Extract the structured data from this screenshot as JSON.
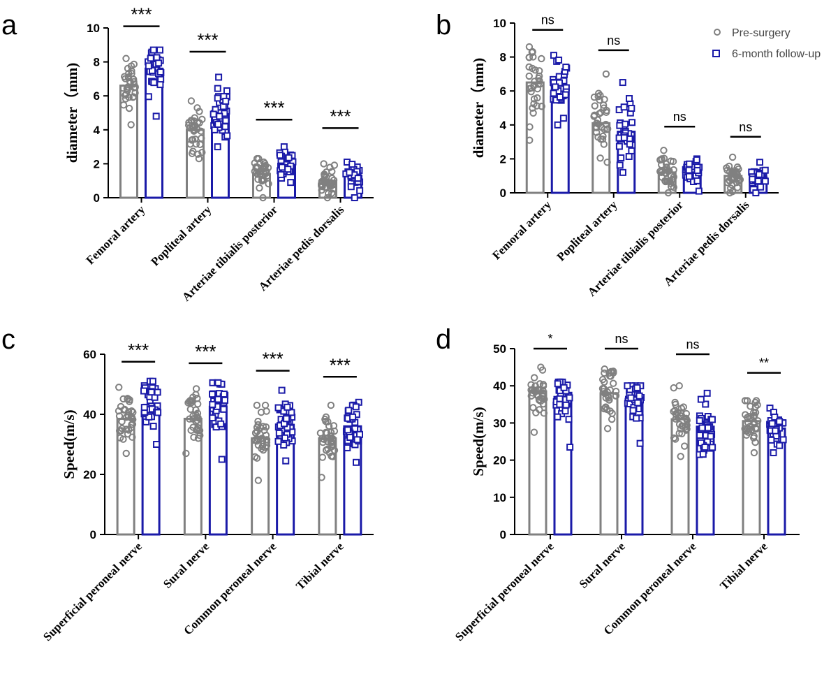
{
  "legend": {
    "pre_label": "Pre-surgery",
    "post_label": "6-month  follow-up"
  },
  "colors": {
    "pre": "#808080",
    "post": "#1a1aa8"
  },
  "chart_data": [
    {
      "panel": "a",
      "type": "bar",
      "title": "",
      "ylabel": "diameter（mm)",
      "xlabel": "",
      "ylim": [
        0,
        10
      ],
      "yticks": [
        0,
        2,
        4,
        6,
        8,
        10
      ],
      "categories": [
        "Femoral artery",
        "Popliteal artery",
        "Arteriae tibialis posterior",
        "Arteriae pedis dorsalis"
      ],
      "series": [
        {
          "name": "Pre-surgery",
          "values": [
            6.6,
            4.0,
            1.4,
            1.0
          ],
          "range": [
            [
              4.3,
              8.2
            ],
            [
              2.3,
              5.7
            ],
            [
              0.0,
              2.3
            ],
            [
              0.0,
              2.0
            ]
          ]
        },
        {
          "name": "6-month  follow-up",
          "values": [
            7.6,
            5.1,
            2.0,
            1.3
          ],
          "range": [
            [
              4.8,
              8.7
            ],
            [
              3.0,
              7.1
            ],
            [
              0.9,
              3.0
            ],
            [
              0.0,
              2.1
            ]
          ]
        }
      ],
      "significance": [
        "***",
        "***",
        "***",
        "***"
      ],
      "sig_y": [
        10.1,
        8.6,
        4.6,
        4.1
      ]
    },
    {
      "panel": "b",
      "type": "bar",
      "title": "",
      "ylabel": "diameter（mm)",
      "xlabel": "",
      "ylim": [
        0,
        10
      ],
      "yticks": [
        0,
        2,
        4,
        6,
        8,
        10
      ],
      "categories": [
        "Femoral artery",
        "Popliteal artery",
        "Arteriae tibialis posterior",
        "Arteriae pedis dorsalis"
      ],
      "series": [
        {
          "name": "Pre-surgery",
          "values": [
            6.5,
            4.1,
            1.2,
            1.0
          ],
          "range": [
            [
              3.1,
              8.6
            ],
            [
              1.8,
              7.0
            ],
            [
              0.0,
              2.5
            ],
            [
              0.0,
              2.1
            ]
          ]
        },
        {
          "name": "6-month  follow-up",
          "values": [
            6.3,
            3.6,
            1.3,
            0.9
          ],
          "range": [
            [
              4.0,
              8.1
            ],
            [
              1.2,
              6.5
            ],
            [
              0.1,
              2.0
            ],
            [
              0.0,
              1.8
            ]
          ]
        }
      ],
      "significance": [
        "ns",
        "ns",
        "ns",
        "ns"
      ],
      "sig_y": [
        9.6,
        8.4,
        3.9,
        3.3
      ]
    },
    {
      "panel": "c",
      "type": "bar",
      "title": "",
      "ylabel": "Speed(m/s)",
      "xlabel": "",
      "ylim": [
        0,
        60
      ],
      "yticks": [
        0,
        20,
        40,
        60
      ],
      "categories": [
        "Superficial peroneal nerve",
        "Sural nerve",
        "Common peroneal nerve",
        "Tibial nerve"
      ],
      "series": [
        {
          "name": "Pre-surgery",
          "values": [
            38.5,
            38.5,
            32.0,
            32.0
          ],
          "range": [
            [
              27.0,
              49.0
            ],
            [
              27.0,
              48.5
            ],
            [
              18.0,
              43.0
            ],
            [
              19.0,
              43.0
            ]
          ]
        },
        {
          "name": "6-month  follow-up",
          "values": [
            43.0,
            42.5,
            36.5,
            36.0
          ],
          "range": [
            [
              30.0,
              51.0
            ],
            [
              25.0,
              50.5
            ],
            [
              24.5,
              48.0
            ],
            [
              24.0,
              44.0
            ]
          ]
        }
      ],
      "significance": [
        "***",
        "***",
        "***",
        "***"
      ],
      "sig_y": [
        57.5,
        57.0,
        54.5,
        52.5
      ]
    },
    {
      "panel": "d",
      "type": "bar",
      "title": "",
      "ylabel": "Speed(m/s)",
      "xlabel": "",
      "ylim": [
        0,
        50
      ],
      "yticks": [
        0,
        10,
        20,
        30,
        40,
        50
      ],
      "categories": [
        "Superficial peroneal nerve",
        "Sural nerve",
        "Common peroneal nerve",
        "Tibial nerve"
      ],
      "series": [
        {
          "name": "Pre-surgery",
          "values": [
            38.5,
            38.0,
            31.0,
            30.5
          ],
          "range": [
            [
              27.5,
              45.0
            ],
            [
              28.5,
              44.5
            ],
            [
              21.0,
              40.0
            ],
            [
              22.0,
              36.0
            ]
          ]
        },
        {
          "name": "6-month  follow-up",
          "values": [
            37.0,
            36.5,
            29.0,
            28.5
          ],
          "range": [
            [
              23.5,
              41.0
            ],
            [
              24.5,
              40.0
            ],
            [
              21.5,
              38.0
            ],
            [
              22.0,
              34.0
            ]
          ]
        }
      ],
      "significance": [
        "*",
        "ns",
        "ns",
        "**"
      ],
      "sig_y": [
        50.0,
        50.0,
        48.5,
        43.5
      ]
    }
  ]
}
